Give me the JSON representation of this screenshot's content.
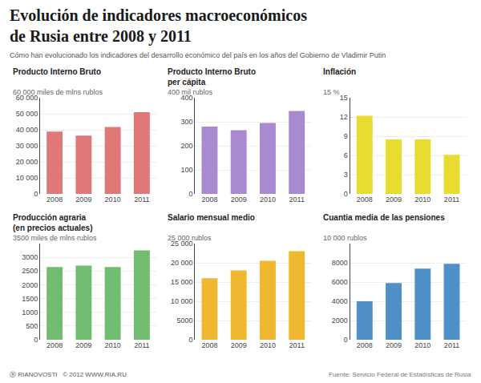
{
  "title": "Evolución de indicadores macroeconómicos\nde Rusia entre 2008 y 2011",
  "subtitle": "Cómo han evolucionado los indicadores del desarrollo económico del país en los años del Gobierno de Vladimir Putin",
  "annotations": [
    "Ⓡ RIANOVOSTI   © 2012 WWW.RIA.RU",
    "Fuente: Servicio Federal de Estadísticas de Rusia"
  ],
  "chart_data": [
    {
      "type": "bar",
      "title": "Producto Interno Bruto",
      "subtitle": "60 000 miles de mlns rublos",
      "categories": [
        "2008",
        "2009",
        "2010",
        "2011"
      ],
      "values": [
        38900,
        36400,
        41700,
        51000
      ],
      "color": "#E07878",
      "ylim": [
        0,
        60000
      ],
      "yticks": [
        0,
        {
          "value": 10000,
          "label": "10 000"
        },
        {
          "value": 20000,
          "label": "20 000"
        },
        {
          "value": 30000,
          "label": "30 000"
        },
        {
          "value": 40000,
          "label": "40 000"
        },
        {
          "value": 50000,
          "label": "50 000"
        },
        {
          "value": 60000,
          "label": "60 000"
        }
      ],
      "grid": true
    },
    {
      "type": "bar",
      "title": "Producto Interno Bruto\nper cápita",
      "subtitle": "400 mil rublos",
      "categories": [
        "2008",
        "2009",
        "2010",
        "2011"
      ],
      "values": [
        280,
        265,
        295,
        345
      ],
      "color": "#A98AD0",
      "ylim": [
        0,
        400
      ],
      "yticks": [
        0,
        100,
        200,
        300,
        400
      ],
      "grid": true
    },
    {
      "type": "bar",
      "title": "Inflación",
      "subtitle": "15 %",
      "categories": [
        "2008",
        "2009",
        "2010",
        "2011"
      ],
      "values": [
        12.2,
        8.5,
        8.5,
        6.1
      ],
      "color": "#E8DC30",
      "ylim": [
        0,
        15
      ],
      "yticks": [
        0,
        3,
        6,
        9,
        12,
        15
      ],
      "grid": true
    },
    {
      "type": "bar",
      "title": "Producción agraria\n(en precios actuales)",
      "subtitle": "3500 miles de mlns rublos",
      "categories": [
        "2008",
        "2009",
        "2010",
        "2011"
      ],
      "values": [
        2650,
        2700,
        2650,
        3250
      ],
      "color": "#72BC72",
      "ylim": [
        0,
        3500
      ],
      "yticks": [
        0,
        500,
        1000,
        1500,
        2000,
        2500,
        3000
      ],
      "grid": true
    },
    {
      "type": "bar",
      "title": "Salario mensual medio",
      "subtitle": "25 000 rublos",
      "categories": [
        "2008",
        "2009",
        "2010",
        "2011"
      ],
      "values": [
        16000,
        18000,
        20500,
        23000
      ],
      "color": "#F0B830",
      "ylim": [
        0,
        25000
      ],
      "yticks": [
        0,
        5000,
        {
          "value": 10000,
          "label": "10 000"
        },
        {
          "value": 15000,
          "label": "15 000"
        },
        {
          "value": 20000,
          "label": "20 000"
        },
        {
          "value": 25000,
          "label": "25 000"
        }
      ],
      "grid": true
    },
    {
      "type": "bar",
      "title": "Cuantia media de las pensiones",
      "subtitle": "10 000 rublos",
      "categories": [
        "2008",
        "2009",
        "2010",
        "2011"
      ],
      "values": [
        4000,
        5900,
        7400,
        7900
      ],
      "color": "#5090C8",
      "ylim": [
        0,
        10000
      ],
      "yticks": [
        0,
        2000,
        4000,
        6000,
        8000
      ],
      "grid": true
    }
  ]
}
